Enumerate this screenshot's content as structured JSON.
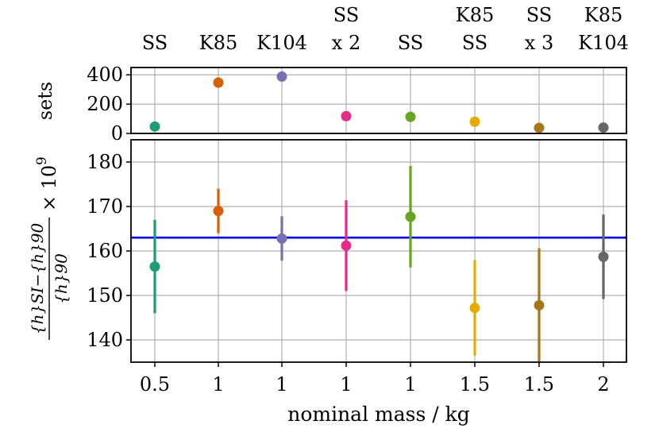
{
  "chart_data": [
    {
      "type": "scatter",
      "panel": "top",
      "ylabel": "sets",
      "ylim": [
        0,
        450
      ],
      "yticks": [
        0,
        200,
        400
      ],
      "group_labels": [
        [
          "SS"
        ],
        [
          "K85"
        ],
        [
          "K104"
        ],
        [
          "SS",
          "x 2"
        ],
        [
          "SS"
        ],
        [
          "K85",
          "SS"
        ],
        [
          "SS",
          "x 3"
        ],
        [
          "K85",
          "K104"
        ]
      ],
      "points": [
        {
          "x": 0,
          "value": 47,
          "color": "#1b9e77"
        },
        {
          "x": 1,
          "value": 347,
          "color": "#d95f02"
        },
        {
          "x": 2,
          "value": 388,
          "color": "#7570b3"
        },
        {
          "x": 3,
          "value": 118,
          "color": "#e7298a"
        },
        {
          "x": 4,
          "value": 113,
          "color": "#66a61e"
        },
        {
          "x": 5,
          "value": 80,
          "color": "#e6ab02"
        },
        {
          "x": 6,
          "value": 38,
          "color": "#a6761d"
        },
        {
          "x": 7,
          "value": 40,
          "color": "#666666"
        }
      ]
    },
    {
      "type": "scatter",
      "panel": "bottom",
      "ylabel_num": "{h}SI−{h}90",
      "ylabel_den": "{h}90",
      "ylabel_factor": "× 10",
      "ylabel_exp": "9",
      "xlabel": "nominal mass / kg",
      "ylim": [
        135,
        185
      ],
      "yticks": [
        140,
        150,
        160,
        170,
        180
      ],
      "categories": [
        "0.5",
        "1",
        "1",
        "1",
        "1",
        "1.5",
        "1.5",
        "2"
      ],
      "reference_line": {
        "value": 163,
        "color": "#0000ee"
      },
      "series": [
        {
          "x": 0,
          "value": 156.5,
          "err_low": 146,
          "err_high": 167,
          "color": "#1b9e77"
        },
        {
          "x": 1,
          "value": 169,
          "err_low": 164,
          "err_high": 174,
          "color": "#d95f02"
        },
        {
          "x": 2,
          "value": 162.8,
          "err_low": 157.8,
          "err_high": 167.8,
          "color": "#7570b3"
        },
        {
          "x": 3,
          "value": 161.2,
          "err_low": 151,
          "err_high": 171.4,
          "color": "#e7298a"
        },
        {
          "x": 4,
          "value": 167.7,
          "err_low": 156.3,
          "err_high": 179.1,
          "color": "#66a61e"
        },
        {
          "x": 5,
          "value": 147.2,
          "err_low": 136.5,
          "err_high": 158,
          "color": "#e6ab02"
        },
        {
          "x": 6,
          "value": 147.8,
          "err_low": 135,
          "err_high": 160.6,
          "color": "#a6761d"
        },
        {
          "x": 7,
          "value": 158.7,
          "err_low": 149.2,
          "err_high": 168.2,
          "color": "#666666"
        }
      ]
    }
  ]
}
